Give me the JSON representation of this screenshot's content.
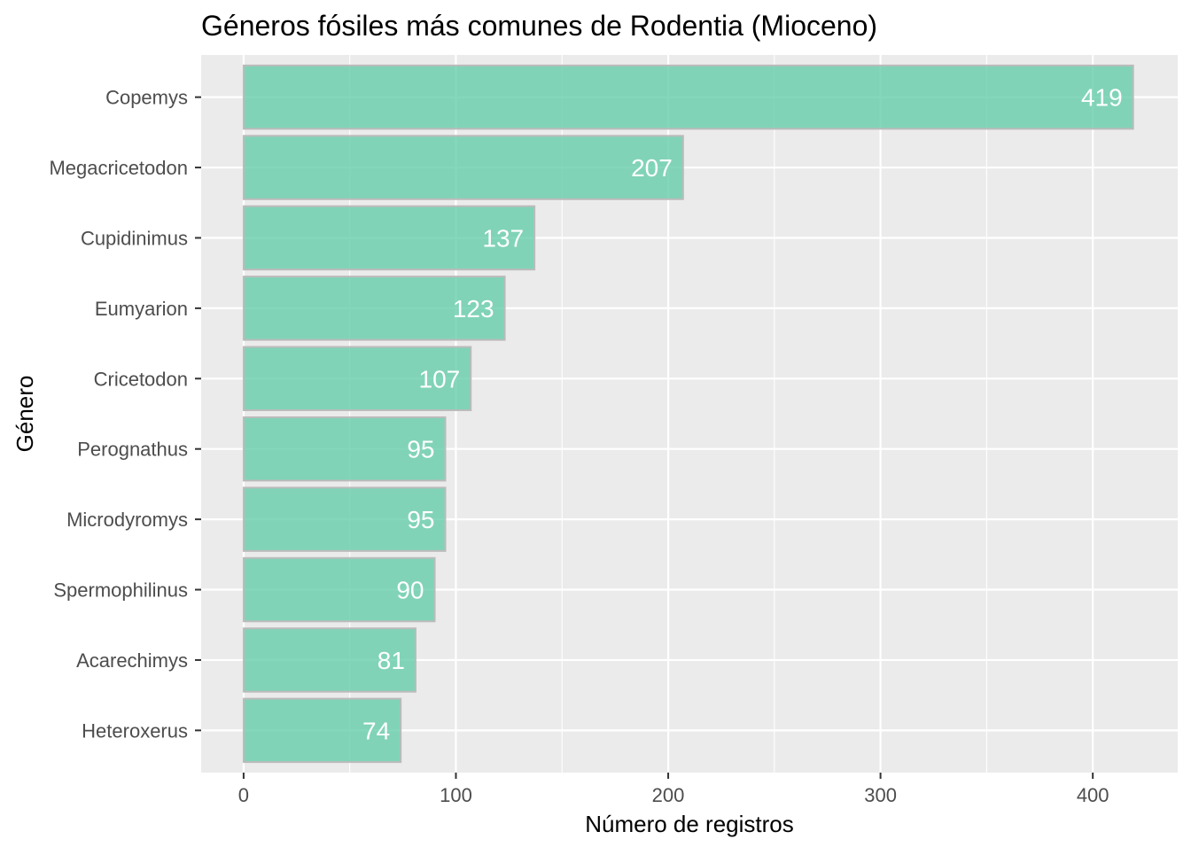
{
  "chart_data": {
    "type": "bar",
    "orientation": "horizontal",
    "title": "Géneros fósiles más comunes de Rodentia (Mioceno)",
    "xlabel": "Número de registros",
    "ylabel": "Género",
    "categories": [
      "Copemys",
      "Megacricetodon",
      "Cupidinimus",
      "Eumyarion",
      "Cricetodon",
      "Perognathus",
      "Microdyromys",
      "Spermophilinus",
      "Acarechimys",
      "Heteroxerus"
    ],
    "values": [
      419,
      207,
      137,
      123,
      107,
      95,
      95,
      90,
      81,
      74
    ],
    "data_labels": [
      "419",
      "207",
      "137",
      "123",
      "107",
      "95",
      "95",
      "90",
      "81",
      "74"
    ],
    "xlim": [
      -20,
      440
    ],
    "x_ticks": [
      0,
      100,
      200,
      300,
      400
    ],
    "x_tick_labels": [
      "0",
      "100",
      "200",
      "300",
      "400"
    ],
    "grid": true,
    "colors": {
      "bar_fill": "#66CDAA",
      "bar_stroke": "#BBBBBB",
      "panel_background": "#EBEBEB",
      "grid": "#FFFFFF",
      "data_label": "#FFFFFF",
      "tick_label": "#4D4D4D",
      "axis_title": "#000000"
    }
  }
}
